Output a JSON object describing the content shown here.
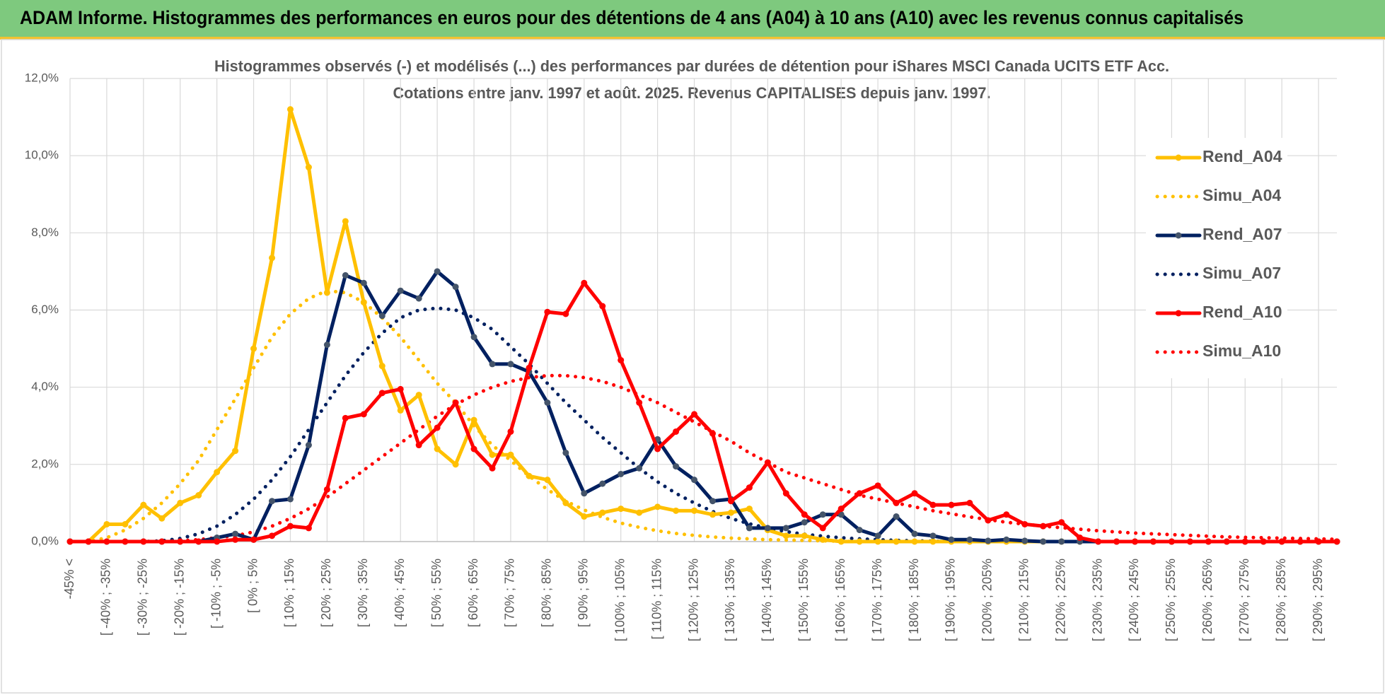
{
  "header": {
    "title": "ADAM Informe. Histogrammes des performances en euros pour des détentions de 4 ans (A04) à 10 ans (A10) avec les revenus connus capitalisés"
  },
  "chart_data": {
    "type": "line",
    "title": "Histogrammes observés (-) et modélisés (...) des performances par durées de détention pour iShares MSCI Canada UCITS ETF Acc.",
    "subtitle": "Cotations entre janv. 1997 et août. 2025. Revenus CAPITALISES depuis janv. 1997.",
    "categories": [
      "-45% <",
      null,
      "[ -40% ; -35%",
      null,
      "[ -30% ; -25%",
      null,
      "[ -20% ; -15%",
      null,
      "[ -10% ; -5%",
      null,
      "[ 0% ; 5%",
      null,
      "[ 10% ; 15%",
      null,
      "[ 20% ; 25%",
      null,
      "[ 30% ; 35%",
      null,
      "[ 40% ; 45%",
      null,
      "[ 50% ; 55%",
      null,
      "[ 60% ; 65%",
      null,
      "[ 70% ; 75%",
      null,
      "[ 80% ; 85%",
      null,
      "[ 90% ; 95%",
      null,
      "[ 100% ; 105%",
      null,
      "[ 110% ; 115%",
      null,
      "[ 120% ; 125%",
      null,
      "[ 130% ; 135%",
      null,
      "[ 140% ; 145%",
      null,
      "[ 150% ; 155%",
      null,
      "[ 160% ; 165%",
      null,
      "[ 170% ; 175%",
      null,
      "[ 180% ; 185%",
      null,
      "[ 190% ; 195%",
      null,
      "[ 200% ; 205%",
      null,
      "[ 210% ; 215%",
      null,
      "[ 220% ; 225%",
      null,
      "[ 230% ; 235%",
      null,
      "[ 240% ; 245%",
      null,
      "[ 250% ; 255%",
      null,
      "[ 260% ; 265%",
      null,
      "[ 270% ; 275%",
      null,
      "[ 280% ; 285%",
      null,
      "[ 290% ; 295%",
      null
    ],
    "ylim": [
      0,
      12
    ],
    "yticks": [
      {
        "value": 0,
        "label": "0,0%"
      },
      {
        "value": 2,
        "label": "2,0%"
      },
      {
        "value": 4,
        "label": "4,0%"
      },
      {
        "value": 6,
        "label": "6,0%"
      },
      {
        "value": 8,
        "label": "8,0%"
      },
      {
        "value": 10,
        "label": "10,0%"
      },
      {
        "value": 12,
        "label": "12,0%"
      }
    ],
    "grid": true,
    "legend": "right",
    "series": [
      {
        "name": "Rend_A04",
        "color": "#ffc000",
        "style": "solid",
        "values": [
          0,
          0,
          0.45,
          0.45,
          0.95,
          0.6,
          1.0,
          1.2,
          1.8,
          2.35,
          5.0,
          7.35,
          11.2,
          9.7,
          6.45,
          8.3,
          6.2,
          4.55,
          3.4,
          3.8,
          2.4,
          2.0,
          3.15,
          2.25,
          2.25,
          1.7,
          1.6,
          1.0,
          0.65,
          0.75,
          0.85,
          0.75,
          0.9,
          0.8,
          0.8,
          0.7,
          0.75,
          0.85,
          0.3,
          0.15,
          0.15,
          0.05,
          0,
          0,
          0,
          0,
          0,
          0,
          0,
          0,
          0,
          0,
          0,
          0,
          0,
          0,
          0,
          0,
          0,
          0,
          0,
          0,
          0,
          0,
          0,
          0,
          0,
          0,
          0,
          0
        ]
      },
      {
        "name": "Simu_A04",
        "color": "#ffc000",
        "style": "dotted",
        "values": [
          0,
          0,
          0.1,
          0.3,
          0.6,
          1.0,
          1.5,
          2.1,
          2.9,
          3.7,
          4.5,
          5.3,
          5.9,
          6.3,
          6.5,
          6.45,
          6.2,
          5.8,
          5.3,
          4.7,
          4.1,
          3.6,
          3.0,
          2.5,
          2.1,
          1.7,
          1.35,
          1.05,
          0.82,
          0.63,
          0.48,
          0.37,
          0.28,
          0.21,
          0.16,
          0.12,
          0.09,
          0.07,
          0.05,
          0.04,
          0.03,
          0.02,
          0.01,
          0,
          0,
          0,
          0,
          0,
          0,
          0,
          0,
          0,
          0,
          0,
          0,
          0,
          0,
          0,
          0,
          0,
          0,
          0,
          0,
          0,
          0,
          0,
          0,
          0,
          0,
          0
        ]
      },
      {
        "name": "Rend_A07",
        "color": "#002060",
        "style": "solid",
        "values": [
          0,
          0,
          0,
          0,
          0,
          0,
          0,
          0,
          0.1,
          0.2,
          0.05,
          1.05,
          1.1,
          2.5,
          5.1,
          6.9,
          6.7,
          5.85,
          6.5,
          6.3,
          7.0,
          6.6,
          5.3,
          4.6,
          4.6,
          4.4,
          3.6,
          2.3,
          1.25,
          1.5,
          1.75,
          1.9,
          2.65,
          1.95,
          1.6,
          1.05,
          1.1,
          0.35,
          0.35,
          0.35,
          0.5,
          0.7,
          0.7,
          0.3,
          0.15,
          0.65,
          0.2,
          0.15,
          0.05,
          0.05,
          0.02,
          0.05,
          0.02,
          0,
          0,
          0,
          0,
          0,
          0,
          0,
          0,
          0,
          0,
          0,
          0,
          0,
          0,
          0,
          0,
          0
        ]
      },
      {
        "name": "Simu_A07",
        "color": "#002060",
        "style": "dotted",
        "values": [
          0,
          0,
          0,
          0,
          0,
          0.02,
          0.08,
          0.2,
          0.4,
          0.7,
          1.1,
          1.6,
          2.2,
          2.9,
          3.6,
          4.3,
          4.9,
          5.4,
          5.8,
          6.0,
          6.05,
          6.0,
          5.8,
          5.5,
          5.05,
          4.6,
          4.1,
          3.6,
          3.15,
          2.7,
          2.3,
          1.9,
          1.55,
          1.25,
          1.0,
          0.78,
          0.6,
          0.46,
          0.35,
          0.26,
          0.19,
          0.14,
          0.1,
          0.07,
          0.05,
          0.03,
          0.02,
          0.01,
          0,
          0,
          0,
          0,
          0,
          0,
          0,
          0,
          0,
          0,
          0,
          0,
          0,
          0,
          0,
          0,
          0,
          0,
          0,
          0,
          0,
          0
        ]
      },
      {
        "name": "Rend_A10",
        "color": "#ff0000",
        "style": "solid",
        "values": [
          0,
          0,
          0,
          0,
          0,
          0,
          0,
          0,
          0,
          0.05,
          0.05,
          0.15,
          0.4,
          0.35,
          1.35,
          3.2,
          3.3,
          3.85,
          3.95,
          2.5,
          2.95,
          3.6,
          2.4,
          1.9,
          2.85,
          4.5,
          5.95,
          5.9,
          6.7,
          6.1,
          4.7,
          3.6,
          2.4,
          2.85,
          3.3,
          2.8,
          1.05,
          1.4,
          2.05,
          1.25,
          0.7,
          0.35,
          0.85,
          1.25,
          1.45,
          1.0,
          1.25,
          0.95,
          0.95,
          1.0,
          0.55,
          0.7,
          0.45,
          0.4,
          0.5,
          0.1,
          0,
          0,
          0,
          0,
          0,
          0,
          0,
          0,
          0,
          0,
          0,
          0,
          0,
          0
        ]
      },
      {
        "name": "Simu_A10",
        "color": "#ff0000",
        "style": "dotted",
        "values": [
          0,
          0,
          0,
          0,
          0,
          0,
          0.02,
          0.05,
          0.1,
          0.15,
          0.25,
          0.4,
          0.6,
          0.85,
          1.15,
          1.5,
          1.85,
          2.2,
          2.55,
          2.9,
          3.25,
          3.55,
          3.8,
          4.0,
          4.15,
          4.25,
          4.3,
          4.3,
          4.25,
          4.15,
          4.0,
          3.8,
          3.6,
          3.35,
          3.1,
          2.85,
          2.6,
          2.3,
          2.05,
          1.8,
          1.65,
          1.5,
          1.35,
          1.2,
          1.1,
          1.0,
          0.9,
          0.8,
          0.72,
          0.64,
          0.57,
          0.5,
          0.45,
          0.4,
          0.36,
          0.32,
          0.28,
          0.25,
          0.22,
          0.2,
          0.18,
          0.16,
          0.14,
          0.12,
          0.11,
          0.1,
          0.09,
          0.08,
          0.07,
          0.06
        ]
      }
    ]
  }
}
